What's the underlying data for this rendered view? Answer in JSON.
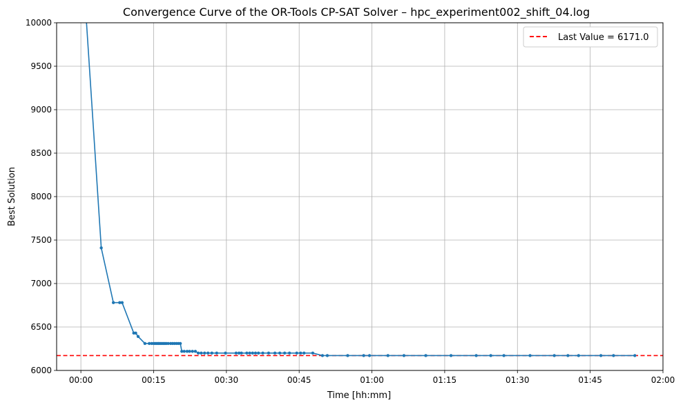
{
  "chart_data": {
    "type": "line",
    "title": "Convergence Curve of the OR-Tools CP-SAT Solver – hpc_experiment002_shift_04.log",
    "xlabel": "Time [hh:mm]",
    "ylabel": "Best Solution",
    "xlim_minutes": [
      -5,
      120
    ],
    "ylim": [
      6000,
      10000
    ],
    "x_ticks": [
      {
        "value": 0,
        "label": "00:00"
      },
      {
        "value": 15,
        "label": "00:15"
      },
      {
        "value": 30,
        "label": "00:30"
      },
      {
        "value": 45,
        "label": "00:45"
      },
      {
        "value": 60,
        "label": "01:00"
      },
      {
        "value": 75,
        "label": "01:15"
      },
      {
        "value": 90,
        "label": "01:30"
      },
      {
        "value": 105,
        "label": "01:45"
      },
      {
        "value": 120,
        "label": "02:00"
      }
    ],
    "y_ticks": [
      {
        "value": 6000,
        "label": "6000"
      },
      {
        "value": 6500,
        "label": "6500"
      },
      {
        "value": 7000,
        "label": "7000"
      },
      {
        "value": 7500,
        "label": "7500"
      },
      {
        "value": 8000,
        "label": "8000"
      },
      {
        "value": 8500,
        "label": "8500"
      },
      {
        "value": 9000,
        "label": "9000"
      },
      {
        "value": 9500,
        "label": "9500"
      },
      {
        "value": 10000,
        "label": "10000"
      }
    ],
    "grid": true,
    "legend_position": "top-right",
    "series_color": "#1f77b4",
    "reference_color": "#ff0000",
    "reference_value": 6171.0,
    "legend_label": "Last Value = 6171.0",
    "x_unit": "minutes",
    "series": [
      {
        "points": [
          [
            1.1,
            10050
          ],
          [
            4.2,
            7410
          ],
          [
            6.7,
            6780
          ],
          [
            8.0,
            6780
          ],
          [
            8.5,
            6780
          ],
          [
            10.9,
            6430
          ],
          [
            11.3,
            6430
          ],
          [
            11.8,
            6390
          ],
          [
            13.2,
            6310
          ],
          [
            14.1,
            6310
          ],
          [
            14.6,
            6310
          ],
          [
            15.0,
            6310
          ],
          [
            15.3,
            6310
          ],
          [
            15.6,
            6310
          ],
          [
            15.9,
            6310
          ],
          [
            16.1,
            6310
          ],
          [
            16.4,
            6310
          ],
          [
            16.7,
            6310
          ],
          [
            17.0,
            6310
          ],
          [
            17.3,
            6310
          ],
          [
            17.6,
            6310
          ],
          [
            18.0,
            6310
          ],
          [
            18.5,
            6310
          ],
          [
            18.9,
            6310
          ],
          [
            19.3,
            6310
          ],
          [
            19.7,
            6310
          ],
          [
            20.1,
            6310
          ],
          [
            20.5,
            6310
          ],
          [
            20.8,
            6220
          ],
          [
            21.3,
            6220
          ],
          [
            21.9,
            6220
          ],
          [
            22.4,
            6220
          ],
          [
            23.0,
            6220
          ],
          [
            23.6,
            6220
          ],
          [
            24.2,
            6200
          ],
          [
            24.8,
            6200
          ],
          [
            25.5,
            6200
          ],
          [
            26.2,
            6200
          ],
          [
            27.0,
            6200
          ],
          [
            28.0,
            6200
          ],
          [
            29.8,
            6200
          ],
          [
            32.0,
            6200
          ],
          [
            32.6,
            6200
          ],
          [
            33.1,
            6200
          ],
          [
            34.2,
            6200
          ],
          [
            34.8,
            6200
          ],
          [
            35.4,
            6200
          ],
          [
            36.0,
            6200
          ],
          [
            36.6,
            6200
          ],
          [
            37.5,
            6200
          ],
          [
            38.7,
            6200
          ],
          [
            40.0,
            6200
          ],
          [
            41.0,
            6200
          ],
          [
            42.0,
            6200
          ],
          [
            43.0,
            6200
          ],
          [
            44.5,
            6200
          ],
          [
            45.3,
            6200
          ],
          [
            46.0,
            6200
          ],
          [
            47.8,
            6200
          ],
          [
            49.8,
            6171
          ],
          [
            50.8,
            6171
          ],
          [
            55.0,
            6171
          ],
          [
            58.3,
            6171
          ],
          [
            59.5,
            6171
          ],
          [
            63.3,
            6171
          ],
          [
            66.6,
            6171
          ],
          [
            71.1,
            6171
          ],
          [
            76.3,
            6171
          ],
          [
            81.5,
            6171
          ],
          [
            84.5,
            6171
          ],
          [
            87.2,
            6171
          ],
          [
            92.6,
            6171
          ],
          [
            97.6,
            6171
          ],
          [
            100.4,
            6171
          ],
          [
            102.6,
            6171
          ],
          [
            107.2,
            6171
          ],
          [
            109.8,
            6171
          ],
          [
            114.2,
            6171
          ]
        ]
      }
    ]
  }
}
